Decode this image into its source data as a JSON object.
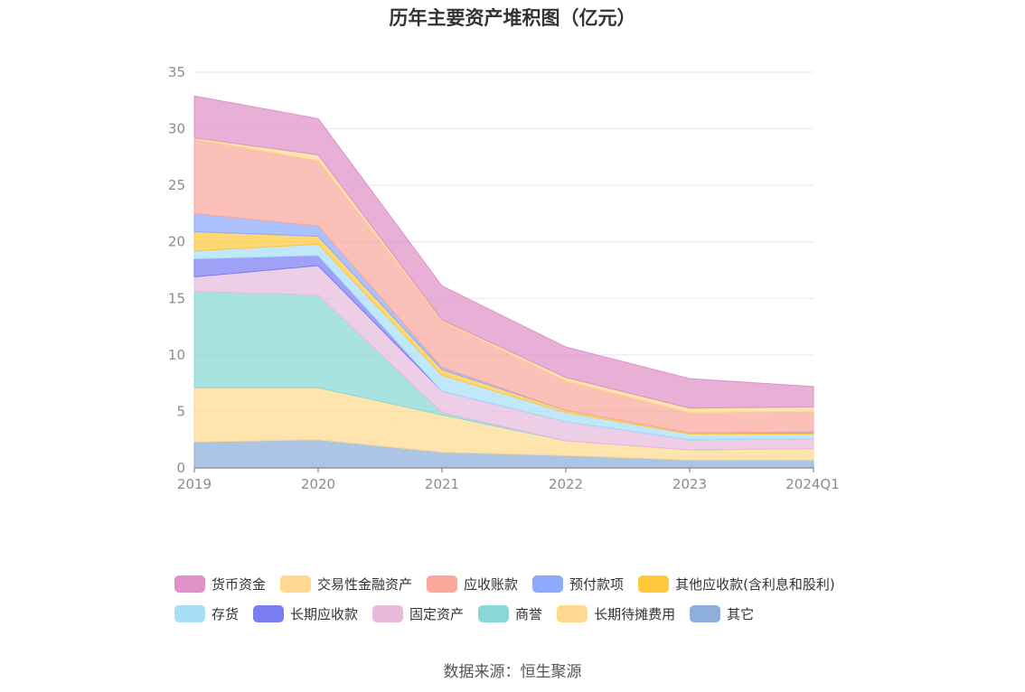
{
  "chart_data": {
    "type": "area",
    "stacked": true,
    "title": "历年主要资产堆积图（亿元）",
    "source": "数据来源：恒生聚源",
    "categories": [
      "2019",
      "2020",
      "2021",
      "2022",
      "2023",
      "2024Q1"
    ],
    "ylim": [
      0,
      35
    ],
    "yticks": [
      0,
      5,
      10,
      15,
      20,
      25,
      30,
      35
    ],
    "grid": true,
    "legend_position": "bottom",
    "series": [
      {
        "name": "其它",
        "color": "#8eaedb",
        "values": [
          2.3,
          2.5,
          1.4,
          1.1,
          0.7,
          0.7
        ]
      },
      {
        "name": "长期待摊费用",
        "color": "#ffd98f",
        "values": [
          4.8,
          4.6,
          3.3,
          1.3,
          0.9,
          1.0
        ]
      },
      {
        "name": "商誉",
        "color": "#88d8d6",
        "values": [
          8.5,
          8.2,
          0.2,
          0.0,
          0.0,
          0.0
        ]
      },
      {
        "name": "固定资产",
        "color": "#e8bbdc",
        "values": [
          1.3,
          2.6,
          1.9,
          1.7,
          0.9,
          0.9
        ]
      },
      {
        "name": "长期应收款",
        "color": "#7a7df2",
        "values": [
          1.6,
          0.9,
          0.0,
          0.0,
          0.0,
          0.0
        ]
      },
      {
        "name": "存货",
        "color": "#a8dff8",
        "values": [
          0.7,
          1.0,
          1.4,
          0.8,
          0.5,
          0.4
        ]
      },
      {
        "name": "其他应收款(含利息和股利)",
        "color": "#ffc83d",
        "values": [
          1.7,
          0.7,
          0.5,
          0.2,
          0.1,
          0.1
        ]
      },
      {
        "name": "预付款项",
        "color": "#8caafe",
        "values": [
          1.6,
          0.9,
          0.2,
          0.0,
          0.0,
          0.1
        ]
      },
      {
        "name": "应收账款",
        "color": "#faa79c",
        "values": [
          6.6,
          5.8,
          4.1,
          2.6,
          1.8,
          1.8
        ]
      },
      {
        "name": "交易性金融资产",
        "color": "#ffd98f",
        "values": [
          0.1,
          0.5,
          0.1,
          0.3,
          0.4,
          0.4
        ]
      },
      {
        "name": "货币资金",
        "color": "#df91c8",
        "values": [
          3.7,
          3.2,
          3.0,
          2.7,
          2.6,
          1.8
        ]
      }
    ]
  }
}
